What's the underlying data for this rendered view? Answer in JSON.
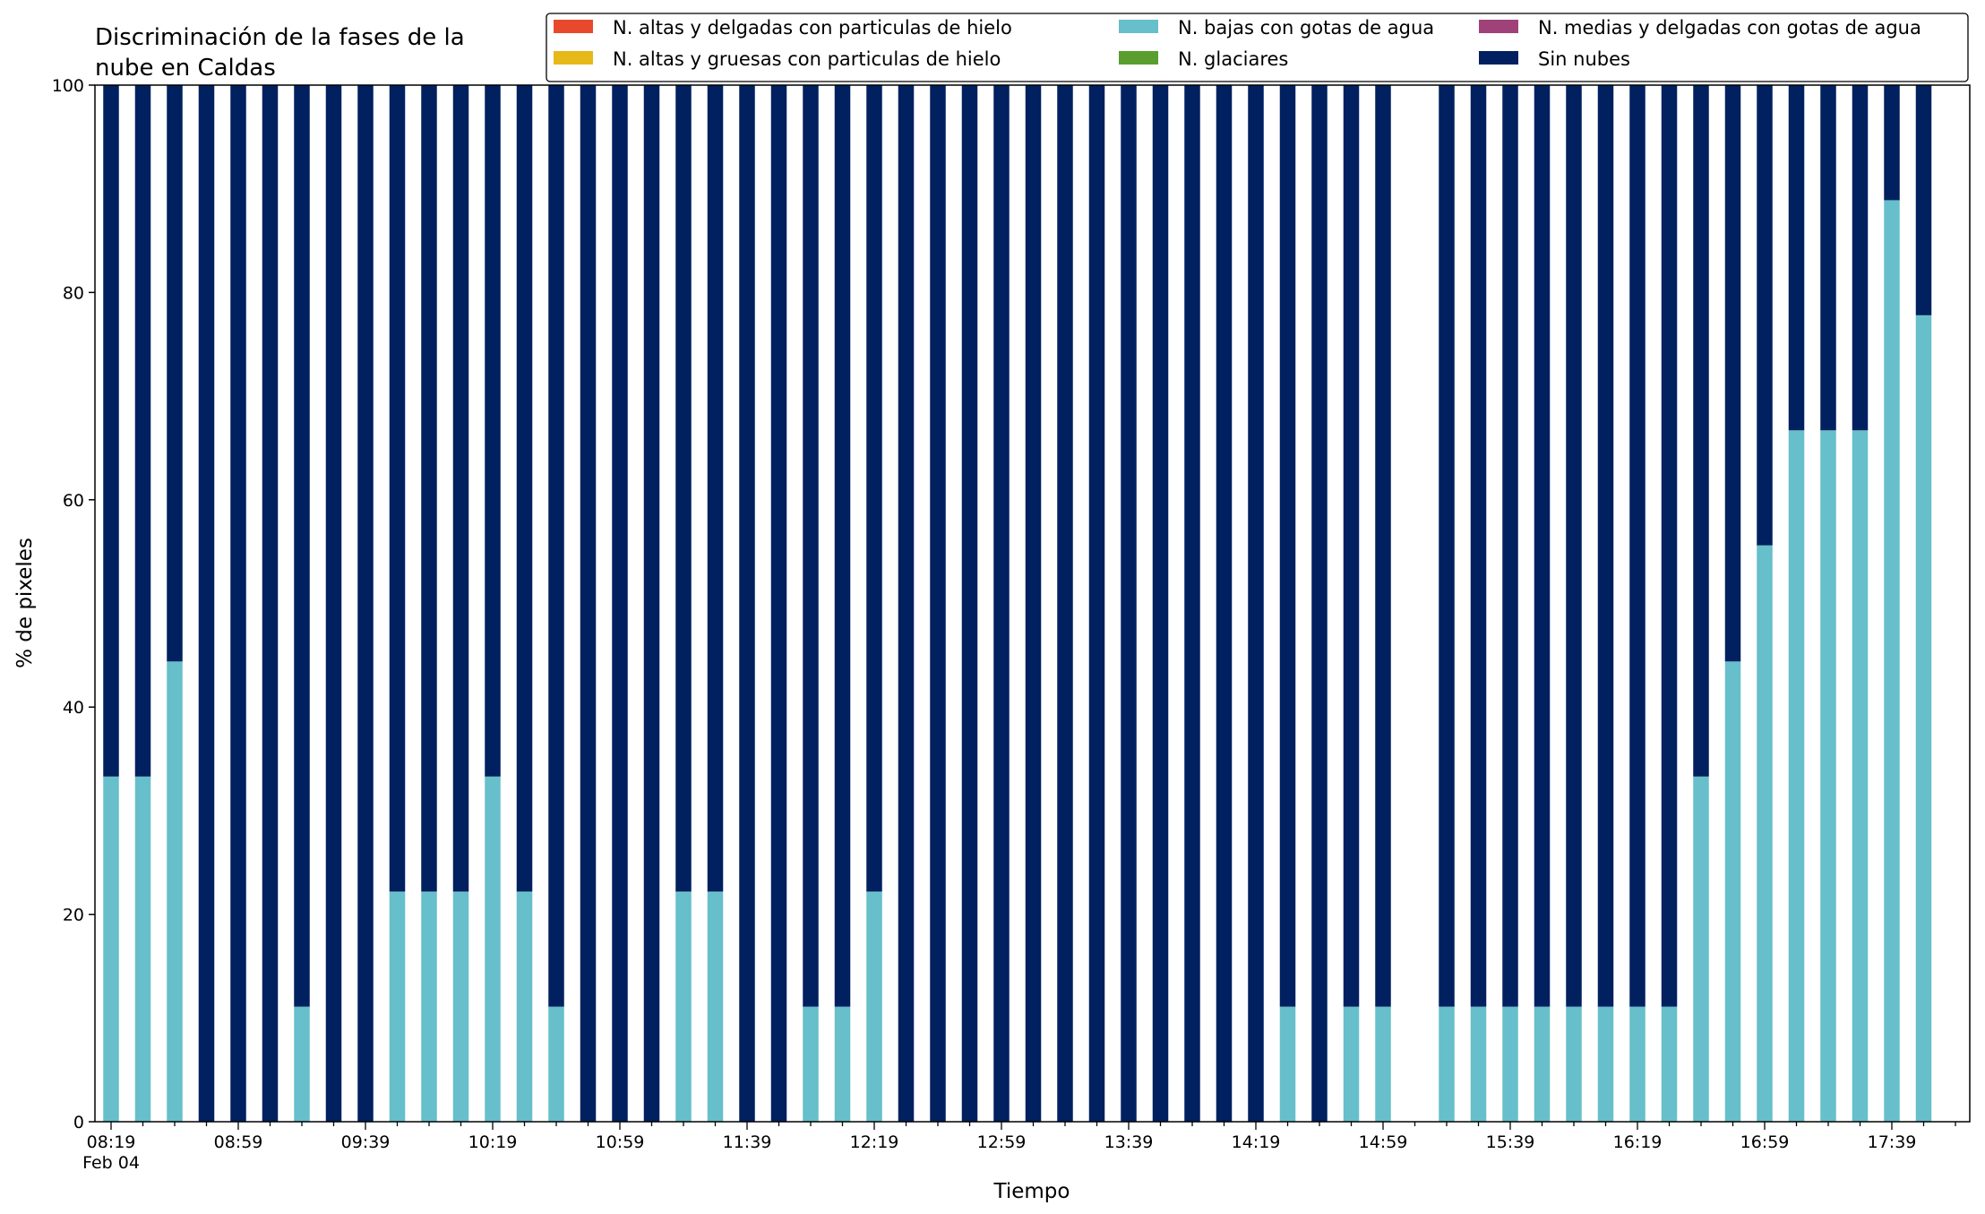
{
  "chart_data": {
    "type": "bar",
    "stacked": true,
    "title_lines": [
      "Discriminación de la fases de la",
      "nube en Caldas"
    ],
    "xlabel": "Tiempo",
    "ylabel": "% de pixeles",
    "ylim": [
      0,
      100
    ],
    "yticks": [
      0,
      20,
      40,
      60,
      80,
      100
    ],
    "date_label": "Feb 04",
    "legend_position": "top-right",
    "grid": false,
    "categories": [
      "08:19",
      "08:29",
      "08:39",
      "08:49",
      "08:59",
      "09:09",
      "09:19",
      "09:29",
      "09:39",
      "09:49",
      "09:59",
      "10:09",
      "10:19",
      "10:29",
      "10:39",
      "10:49",
      "10:59",
      "11:09",
      "11:19",
      "11:29",
      "11:39",
      "11:49",
      "11:59",
      "12:09",
      "12:19",
      "12:29",
      "12:39",
      "12:49",
      "12:59",
      "13:09",
      "13:19",
      "13:29",
      "13:39",
      "13:49",
      "13:59",
      "14:09",
      "14:19",
      "14:29",
      "14:39",
      "14:49",
      "14:59",
      "15:09",
      "15:19",
      "15:29",
      "15:39",
      "15:49",
      "15:59",
      "16:09",
      "16:19",
      "16:29",
      "16:39",
      "16:49",
      "16:59",
      "17:09",
      "17:19",
      "17:29",
      "17:39",
      "17:49"
    ],
    "tick_labels": [
      "08:19",
      "08:59",
      "09:39",
      "10:19",
      "10:59",
      "11:39",
      "12:19",
      "12:59",
      "13:39",
      "14:19",
      "14:59",
      "15:39",
      "16:19",
      "16:59",
      "17:39"
    ],
    "series": [
      {
        "name": "N. altas y delgadas con particulas de hielo",
        "color": "#e8492c",
        "values": [
          0,
          0,
          0,
          0,
          0,
          0,
          0,
          0,
          0,
          0,
          0,
          0,
          0,
          0,
          0,
          0,
          0,
          0,
          0,
          0,
          0,
          0,
          0,
          0,
          0,
          0,
          0,
          0,
          0,
          0,
          0,
          0,
          0,
          0,
          0,
          0,
          0,
          0,
          0,
          0,
          0,
          null,
          0,
          0,
          0,
          0,
          0,
          0,
          0,
          0,
          0,
          0,
          0,
          0,
          0,
          0,
          0,
          0
        ]
      },
      {
        "name": "N. altas y gruesas con particulas de hielo",
        "color": "#e6b818",
        "values": [
          0,
          0,
          0,
          0,
          0,
          0,
          0,
          0,
          0,
          0,
          0,
          0,
          0,
          0,
          0,
          0,
          0,
          0,
          0,
          0,
          0,
          0,
          0,
          0,
          0,
          0,
          0,
          0,
          0,
          0,
          0,
          0,
          0,
          0,
          0,
          0,
          0,
          0,
          0,
          0,
          0,
          null,
          0,
          0,
          0,
          0,
          0,
          0,
          0,
          0,
          0,
          0,
          0,
          0,
          0,
          0,
          0,
          0
        ]
      },
      {
        "name": "N. bajas con gotas de agua",
        "color": "#66bfca",
        "values": [
          33.3,
          33.3,
          44.4,
          0,
          0,
          0,
          11.1,
          0,
          0,
          22.2,
          22.2,
          22.2,
          33.3,
          22.2,
          11.1,
          0,
          0,
          0,
          22.2,
          22.2,
          0,
          0,
          11.1,
          11.1,
          22.2,
          0,
          0,
          0,
          0,
          0,
          0,
          0,
          0,
          0,
          0,
          0,
          0,
          11.1,
          0,
          11.1,
          11.1,
          null,
          11.1,
          11.1,
          11.1,
          11.1,
          11.1,
          11.1,
          11.1,
          11.1,
          33.3,
          44.4,
          55.6,
          66.7,
          66.7,
          66.7,
          88.9,
          77.8
        ]
      },
      {
        "name": "N. glaciares",
        "color": "#5a9e2f",
        "values": [
          0,
          0,
          0,
          0,
          0,
          0,
          0,
          0,
          0,
          0,
          0,
          0,
          0,
          0,
          0,
          0,
          0,
          0,
          0,
          0,
          0,
          0,
          0,
          0,
          0,
          0,
          0,
          0,
          0,
          0,
          0,
          0,
          0,
          0,
          0,
          0,
          0,
          0,
          0,
          0,
          0,
          null,
          0,
          0,
          0,
          0,
          0,
          0,
          0,
          0,
          0,
          0,
          0,
          0,
          0,
          0,
          0,
          0
        ]
      },
      {
        "name": "N. medias y delgadas con gotas de agua",
        "color": "#a0427a",
        "values": [
          0,
          0,
          0,
          0,
          0,
          0,
          0,
          0,
          0,
          0,
          0,
          0,
          0,
          0,
          0,
          0,
          0,
          0,
          0,
          0,
          0,
          0,
          0,
          0,
          0,
          0,
          0,
          0,
          0,
          0,
          0,
          0,
          0,
          0,
          0,
          0,
          0,
          0,
          0,
          0,
          0,
          null,
          0,
          0,
          0,
          0,
          0,
          0,
          0,
          0,
          0,
          0,
          0,
          0,
          0,
          0,
          0,
          0
        ]
      },
      {
        "name": "Sin nubes",
        "color": "#00205f",
        "values": [
          66.7,
          66.7,
          55.6,
          100,
          100,
          100,
          88.9,
          100,
          100,
          77.8,
          77.8,
          77.8,
          66.7,
          77.8,
          88.9,
          100,
          100,
          100,
          77.8,
          77.8,
          100,
          100,
          88.9,
          88.9,
          77.8,
          100,
          100,
          100,
          100,
          100,
          100,
          100,
          100,
          100,
          100,
          100,
          100,
          88.9,
          100,
          88.9,
          88.9,
          null,
          88.9,
          88.9,
          88.9,
          88.9,
          88.9,
          88.9,
          88.9,
          88.9,
          66.7,
          55.6,
          44.4,
          33.3,
          33.3,
          33.3,
          11.1,
          22.2
        ]
      }
    ],
    "legend_order": [
      0,
      1,
      2,
      3,
      4,
      5
    ]
  }
}
